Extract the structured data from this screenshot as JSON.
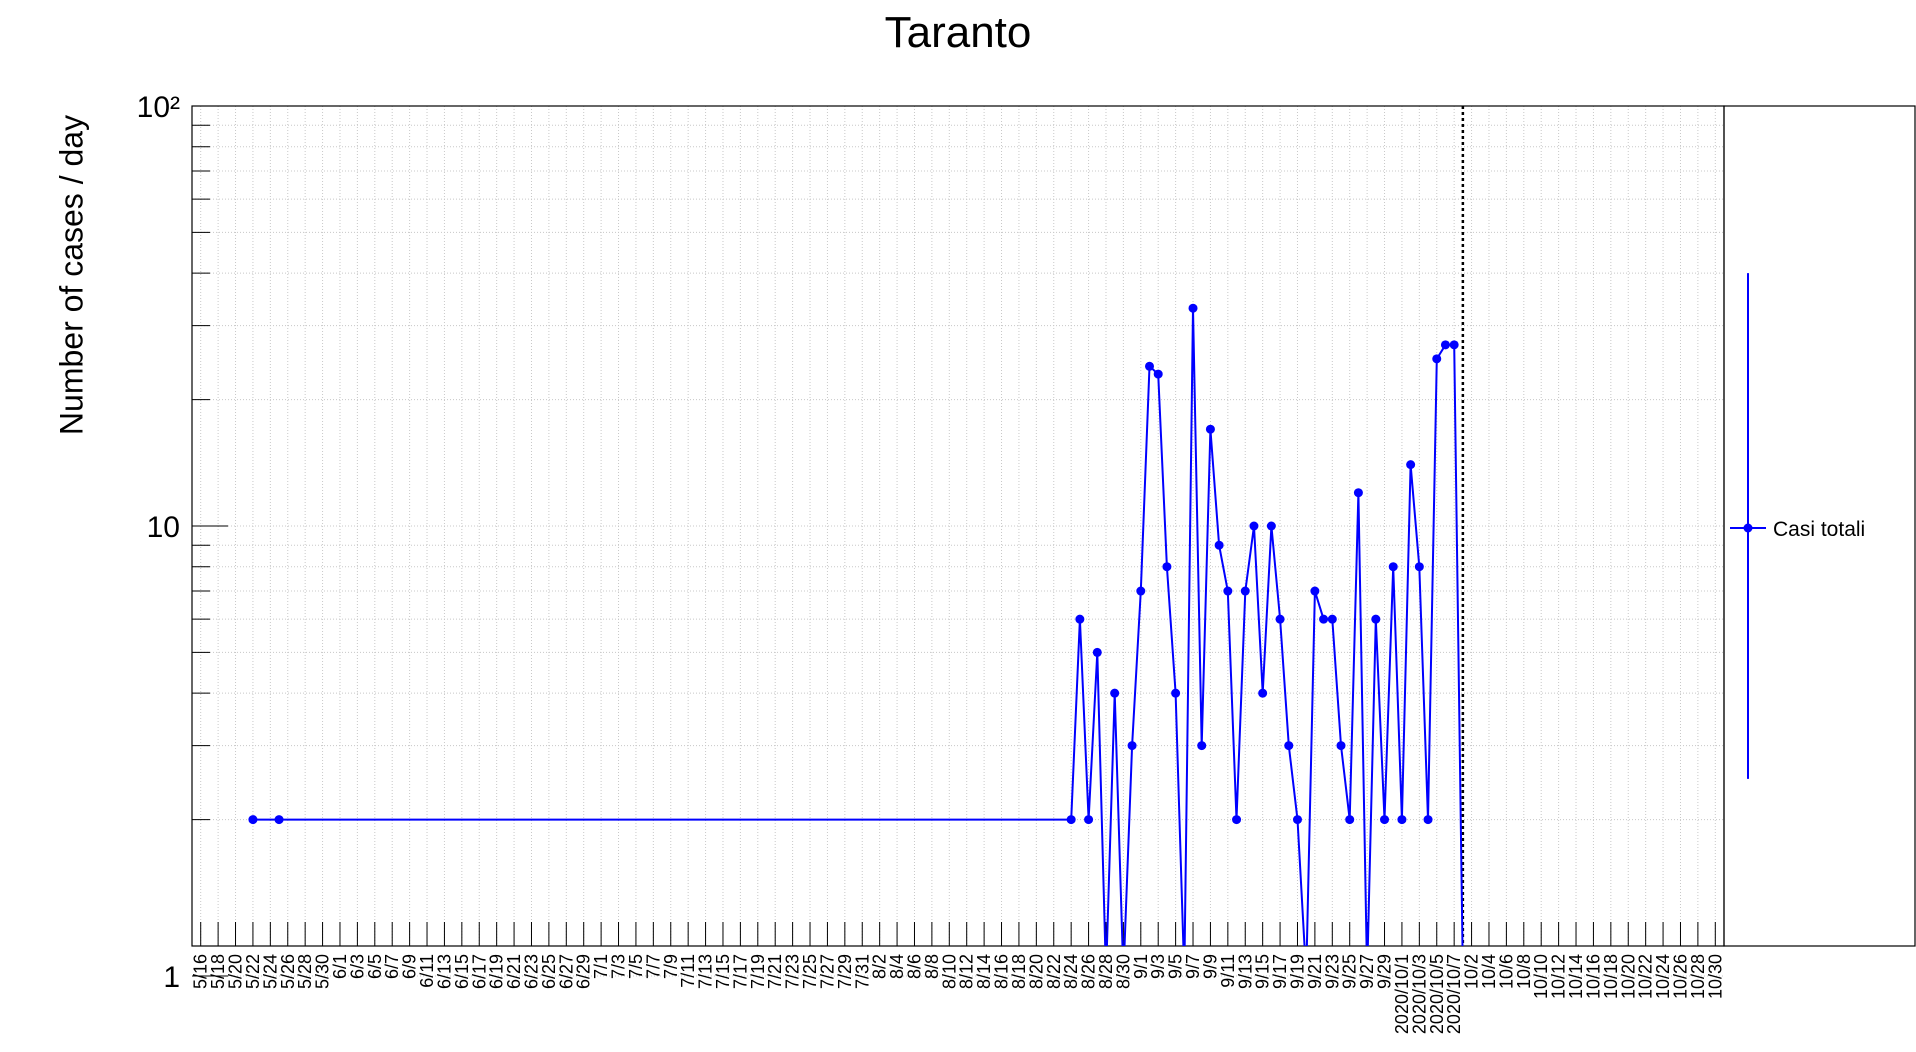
{
  "chart_data": {
    "type": "line",
    "title": "Taranto",
    "ylabel": "Number of cases / day",
    "xlabel": "",
    "yscale": "log",
    "ylim": [
      1,
      100
    ],
    "ytick_labels": [
      "1",
      "10",
      "10²"
    ],
    "grid": true,
    "legend_position": "right",
    "x_tick_labels": [
      "5/16",
      "5/18",
      "5/20",
      "5/22",
      "5/24",
      "5/26",
      "5/28",
      "5/30",
      "6/1",
      "6/3",
      "6/5",
      "6/7",
      "6/9",
      "6/11",
      "6/13",
      "6/15",
      "6/17",
      "6/19",
      "6/21",
      "6/23",
      "6/25",
      "6/27",
      "6/29",
      "7/1",
      "7/3",
      "7/5",
      "7/7",
      "7/9",
      "7/11",
      "7/13",
      "7/15",
      "7/17",
      "7/19",
      "7/21",
      "7/23",
      "7/25",
      "7/27",
      "7/29",
      "7/31",
      "8/2",
      "8/4",
      "8/6",
      "8/8",
      "8/10",
      "8/12",
      "8/14",
      "8/16",
      "8/18",
      "8/20",
      "8/22",
      "8/24",
      "8/26",
      "8/28",
      "8/30",
      "9/1",
      "9/3",
      "9/5",
      "9/7",
      "9/9",
      "9/11",
      "9/13",
      "9/15",
      "9/17",
      "9/19",
      "9/21",
      "9/23",
      "9/25",
      "9/27",
      "9/29",
      "2020/10/1",
      "2020/10/3",
      "2020/10/5",
      "2020/10/7",
      "10/2",
      "10/4",
      "10/6",
      "10/8",
      "10/10",
      "10/12",
      "10/14",
      "10/16",
      "10/18",
      "10/20",
      "10/22",
      "10/24",
      "10/26",
      "10/28",
      "10/30"
    ],
    "series": [
      {
        "name": "Casi totali",
        "color": "#0000ff",
        "x": [
          "5/22",
          "5/25",
          "8/24",
          "8/25",
          "8/26",
          "8/27",
          "8/28",
          "8/29",
          "8/30",
          "8/31",
          "9/1",
          "9/2",
          "9/3",
          "9/4",
          "9/5",
          "9/6",
          "9/7",
          "9/8",
          "9/9",
          "9/10",
          "9/11",
          "9/12",
          "9/13",
          "9/14",
          "9/15",
          "9/16",
          "9/17",
          "9/18",
          "9/19",
          "9/20",
          "9/21",
          "9/22",
          "9/23",
          "9/24",
          "9/25",
          "9/26",
          "9/27",
          "9/28",
          "9/29",
          "9/30",
          "10/1",
          "10/2",
          "10/3",
          "10/4",
          "10/5",
          "10/6",
          "10/7",
          "10/8"
        ],
        "y": [
          2,
          2,
          2,
          6,
          2,
          5,
          0,
          4,
          0,
          3,
          7,
          24,
          23,
          8,
          4,
          0,
          33,
          3,
          17,
          9,
          7,
          2,
          7,
          10,
          4,
          10,
          6,
          3,
          2,
          0,
          7,
          6,
          6,
          3,
          2,
          12,
          0,
          6,
          2,
          8,
          2,
          14,
          8,
          2,
          25,
          27,
          27,
          0
        ]
      }
    ],
    "vertical_marker": "10/8"
  }
}
